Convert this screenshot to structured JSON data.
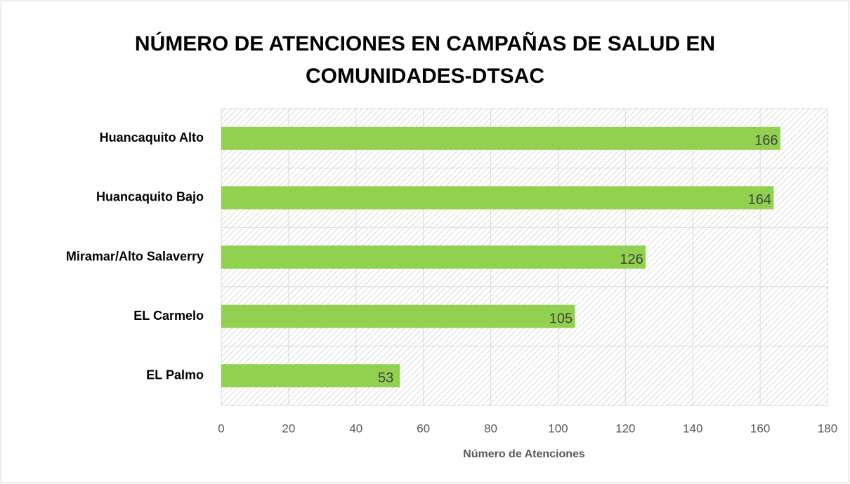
{
  "chart_data": {
    "type": "bar",
    "orientation": "horizontal",
    "title": "NÚMERO DE ATENCIONES EN CAMPAÑAS DE SALUD EN COMUNIDADES-DTSAC",
    "x_label": "Número de Atenciones",
    "categories": [
      "Huancaquito Alto",
      "Huancaquito Bajo",
      "Miramar/Alto Salaverry",
      "EL Carmelo",
      "EL Palmo"
    ],
    "values": [
      166,
      164,
      126,
      105,
      53
    ],
    "color": "#92d050",
    "xlim": [
      0,
      180
    ],
    "xticks": [
      0,
      20,
      40,
      60,
      80,
      100,
      120,
      140,
      160,
      180
    ],
    "grid": true
  }
}
